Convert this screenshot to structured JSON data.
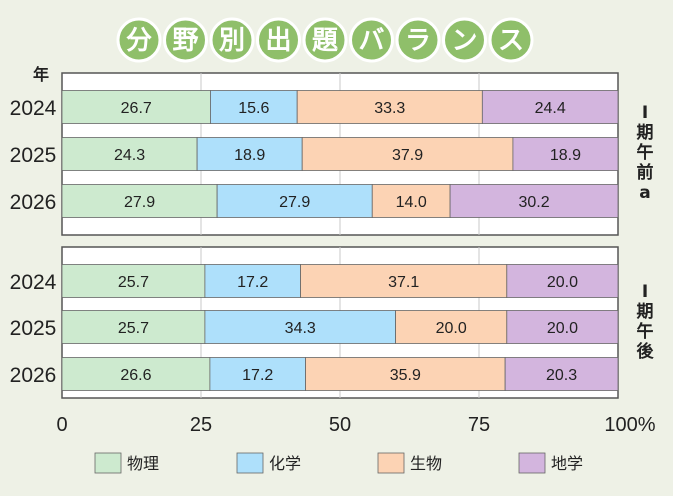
{
  "title_chars": [
    "分",
    "野",
    "別",
    "出",
    "題",
    "バ",
    "ラ",
    "ン",
    "ス"
  ],
  "year_header": "年",
  "colors": {
    "background": "#eef1e6",
    "title_circle": "#8fbf6a",
    "title_circle_border": "#ffffff",
    "panel_border": "#555555",
    "gridline": "#c8c8c8",
    "text": "#222222",
    "series": [
      "#cdeacf",
      "#aee0fb",
      "#fcd3b4",
      "#d3b5de"
    ]
  },
  "chart_data": {
    "type": "bar",
    "orientation": "horizontal",
    "stacked": true,
    "xlim": [
      0,
      100
    ],
    "x_ticks": [
      "0",
      "25",
      "50",
      "75",
      "100%"
    ],
    "x_tick_values": [
      0,
      25,
      50,
      75,
      100
    ],
    "grid": true,
    "legend_position": "bottom",
    "series_names": [
      "物理",
      "化学",
      "生物",
      "地学"
    ],
    "panels": [
      {
        "label": "Ⅰ期午前a",
        "label_chars": [
          "Ⅰ",
          "期",
          "午",
          "前",
          "a"
        ],
        "rows": [
          {
            "year": "2024",
            "values": [
              26.7,
              15.6,
              33.3,
              24.4
            ],
            "labels": [
              "26.7",
              "15.6",
              "33.3",
              "24.4"
            ]
          },
          {
            "year": "2025",
            "values": [
              24.3,
              18.9,
              37.9,
              18.9
            ],
            "labels": [
              "24.3",
              "18.9",
              "37.9",
              "18.9"
            ]
          },
          {
            "year": "2026",
            "values": [
              27.9,
              27.9,
              14.0,
              30.2
            ],
            "labels": [
              "27.9",
              "27.9",
              "14.0",
              "30.2"
            ]
          }
        ]
      },
      {
        "label": "Ⅰ期午後",
        "label_chars": [
          "Ⅰ",
          "期",
          "午",
          "後"
        ],
        "rows": [
          {
            "year": "2024",
            "values": [
              25.7,
              17.2,
              37.1,
              20.0
            ],
            "labels": [
              "25.7",
              "17.2",
              "37.1",
              "20.0"
            ]
          },
          {
            "year": "2025",
            "values": [
              25.7,
              34.3,
              20.0,
              20.0
            ],
            "labels": [
              "25.7",
              "34.3",
              "20.0",
              "20.0"
            ]
          },
          {
            "year": "2026",
            "values": [
              26.6,
              17.2,
              35.9,
              20.3
            ],
            "labels": [
              "26.6",
              "17.2",
              "35.9",
              "20.3"
            ]
          }
        ]
      }
    ]
  }
}
